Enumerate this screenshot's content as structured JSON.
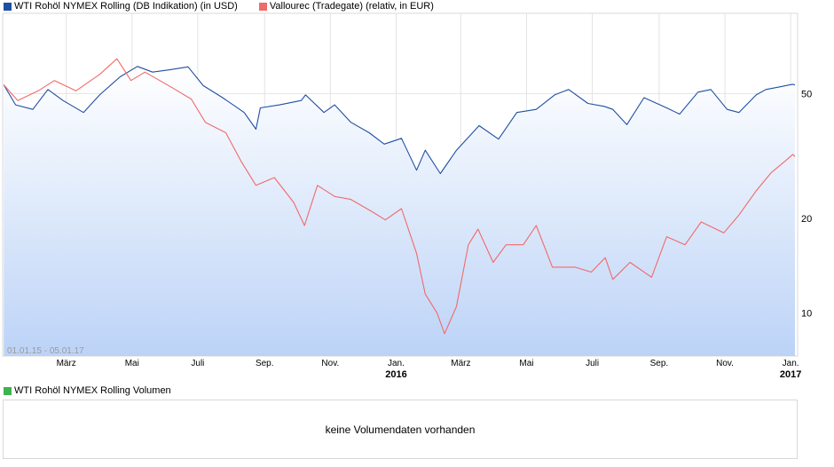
{
  "legend": [
    {
      "label": "WTI Rohöl NYMEX Rolling (DB Indikation) (in USD)",
      "color": "#1f4fa3"
    },
    {
      "label": "Vallourec (Tradegate) (relativ, in EUR)",
      "color": "#f06a6a"
    }
  ],
  "volume": {
    "legend_label": "WTI Rohöl NYMEX Rolling Volumen",
    "legend_color": "#3fb34f",
    "message": "keine Volumendaten vorhanden"
  },
  "colors": {
    "area_top": "#ffffff",
    "area_bottom": "#bcd3f7",
    "grid": "#e3e3e3"
  },
  "chart_data": {
    "type": "line",
    "date_range_label": "01.01.15 - 05.01.17",
    "y_scale": "log",
    "ylim": [
      7.3,
      90
    ],
    "y_ticks": [
      {
        "value": 10,
        "label": "10"
      },
      {
        "value": 20,
        "label": "20"
      },
      {
        "value": 50,
        "label": "50"
      }
    ],
    "x_range": [
      "2015-01-01",
      "2017-01-05"
    ],
    "x_ticks": [
      {
        "date": "2015-03-01",
        "label": "März",
        "sublabel": ""
      },
      {
        "date": "2015-05-01",
        "label": "Mai",
        "sublabel": ""
      },
      {
        "date": "2015-07-01",
        "label": "Juli",
        "sublabel": ""
      },
      {
        "date": "2015-09-01",
        "label": "Sep.",
        "sublabel": ""
      },
      {
        "date": "2015-11-01",
        "label": "Nov.",
        "sublabel": ""
      },
      {
        "date": "2016-01-01",
        "label": "Jan.",
        "sublabel": "2016"
      },
      {
        "date": "2016-03-01",
        "label": "März",
        "sublabel": ""
      },
      {
        "date": "2016-05-01",
        "label": "Mai",
        "sublabel": ""
      },
      {
        "date": "2016-07-01",
        "label": "Juli",
        "sublabel": ""
      },
      {
        "date": "2016-09-01",
        "label": "Sep.",
        "sublabel": ""
      },
      {
        "date": "2016-11-01",
        "label": "Nov.",
        "sublabel": ""
      },
      {
        "date": "2017-01-01",
        "label": "Jan.",
        "sublabel": "2017"
      }
    ],
    "series": [
      {
        "name": "WTI Rohöl NYMEX Rolling (DB Indikation) (in USD)",
        "color": "#1f4fa3",
        "area": true,
        "points": [
          [
            "2015-01-02",
            53.3
          ],
          [
            "2015-01-13",
            46.0
          ],
          [
            "2015-01-29",
            44.5
          ],
          [
            "2015-02-12",
            51.5
          ],
          [
            "2015-02-26",
            47.5
          ],
          [
            "2015-03-17",
            43.5
          ],
          [
            "2015-04-01",
            49.5
          ],
          [
            "2015-04-20",
            56.5
          ],
          [
            "2015-05-06",
            61.0
          ],
          [
            "2015-05-20",
            58.5
          ],
          [
            "2015-06-05",
            59.5
          ],
          [
            "2015-06-22",
            60.8
          ],
          [
            "2015-07-06",
            53.0
          ],
          [
            "2015-07-24",
            48.5
          ],
          [
            "2015-08-13",
            43.5
          ],
          [
            "2015-08-24",
            38.5
          ],
          [
            "2015-08-28",
            45.0
          ],
          [
            "2015-09-15",
            46.0
          ],
          [
            "2015-10-05",
            47.5
          ],
          [
            "2015-10-09",
            49.5
          ],
          [
            "2015-10-26",
            43.5
          ],
          [
            "2015-11-05",
            46.0
          ],
          [
            "2015-11-20",
            40.5
          ],
          [
            "2015-12-07",
            37.5
          ],
          [
            "2015-12-21",
            34.5
          ],
          [
            "2016-01-06",
            36.0
          ],
          [
            "2016-01-20",
            28.5
          ],
          [
            "2016-01-28",
            33.0
          ],
          [
            "2016-02-11",
            27.8
          ],
          [
            "2016-02-26",
            33.0
          ],
          [
            "2016-03-18",
            39.5
          ],
          [
            "2016-04-05",
            35.8
          ],
          [
            "2016-04-22",
            43.5
          ],
          [
            "2016-05-10",
            44.5
          ],
          [
            "2016-05-27",
            49.5
          ],
          [
            "2016-06-09",
            51.5
          ],
          [
            "2016-06-27",
            46.5
          ],
          [
            "2016-07-12",
            45.5
          ],
          [
            "2016-07-20",
            44.5
          ],
          [
            "2016-08-02",
            39.8
          ],
          [
            "2016-08-18",
            48.5
          ],
          [
            "2016-09-08",
            45.0
          ],
          [
            "2016-09-20",
            43.0
          ],
          [
            "2016-10-07",
            50.5
          ],
          [
            "2016-10-19",
            51.5
          ],
          [
            "2016-11-03",
            44.5
          ],
          [
            "2016-11-14",
            43.5
          ],
          [
            "2016-11-30",
            49.5
          ],
          [
            "2016-12-09",
            51.5
          ],
          [
            "2016-12-22",
            52.5
          ],
          [
            "2017-01-03",
            53.5
          ],
          [
            "2017-01-05",
            53.2
          ]
        ]
      },
      {
        "name": "Vallourec (Tradegate) (relativ, in EUR)",
        "color": "#f06a6a",
        "area": false,
        "points": [
          [
            "2015-01-02",
            53.3
          ],
          [
            "2015-01-15",
            47.5
          ],
          [
            "2015-02-03",
            51.0
          ],
          [
            "2015-02-18",
            55.0
          ],
          [
            "2015-03-10",
            51.0
          ],
          [
            "2015-04-01",
            57.5
          ],
          [
            "2015-04-17",
            64.5
          ],
          [
            "2015-04-30",
            55.0
          ],
          [
            "2015-05-13",
            58.5
          ],
          [
            "2015-06-08",
            52.0
          ],
          [
            "2015-06-25",
            48.0
          ],
          [
            "2015-07-08",
            40.5
          ],
          [
            "2015-07-27",
            37.5
          ],
          [
            "2015-08-10",
            30.5
          ],
          [
            "2015-08-24",
            25.5
          ],
          [
            "2015-09-10",
            27.0
          ],
          [
            "2015-09-28",
            22.5
          ],
          [
            "2015-10-08",
            19.0
          ],
          [
            "2015-10-20",
            25.5
          ],
          [
            "2015-11-05",
            23.5
          ],
          [
            "2015-11-20",
            23.0
          ],
          [
            "2015-12-10",
            21.0
          ],
          [
            "2015-12-22",
            19.8
          ],
          [
            "2016-01-06",
            21.5
          ],
          [
            "2016-01-20",
            15.5
          ],
          [
            "2016-01-28",
            11.5
          ],
          [
            "2016-02-08",
            10.0
          ],
          [
            "2016-02-15",
            8.6
          ],
          [
            "2016-02-26",
            10.5
          ],
          [
            "2016-03-08",
            16.5
          ],
          [
            "2016-03-17",
            18.5
          ],
          [
            "2016-03-31",
            14.5
          ],
          [
            "2016-04-12",
            16.5
          ],
          [
            "2016-04-28",
            16.5
          ],
          [
            "2016-05-10",
            19.0
          ],
          [
            "2016-05-25",
            14.0
          ],
          [
            "2016-06-15",
            14.0
          ],
          [
            "2016-06-30",
            13.5
          ],
          [
            "2016-07-13",
            15.0
          ],
          [
            "2016-07-20",
            12.8
          ],
          [
            "2016-08-05",
            14.5
          ],
          [
            "2016-08-25",
            13.0
          ],
          [
            "2016-09-08",
            17.5
          ],
          [
            "2016-09-25",
            16.5
          ],
          [
            "2016-10-10",
            19.5
          ],
          [
            "2016-10-31",
            18.0
          ],
          [
            "2016-11-14",
            20.5
          ],
          [
            "2016-11-30",
            24.5
          ],
          [
            "2016-12-14",
            28.0
          ],
          [
            "2016-12-27",
            30.5
          ],
          [
            "2017-01-03",
            32.0
          ],
          [
            "2017-01-05",
            31.5
          ]
        ]
      }
    ]
  }
}
